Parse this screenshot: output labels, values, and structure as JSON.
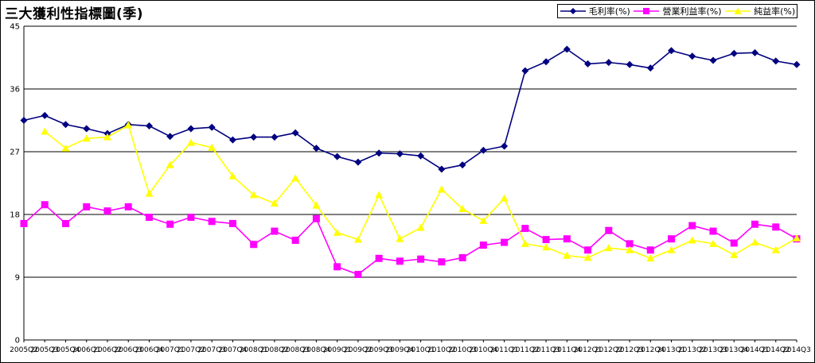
{
  "chart_data": {
    "type": "line",
    "title": "三大獲利性指標圖(季)",
    "categories": [
      "2005Q2",
      "2005Q3",
      "2005Q4",
      "2006Q1",
      "2006Q2",
      "2006Q3",
      "2006Q4",
      "2007Q1",
      "2007Q2",
      "2007Q3",
      "2007Q4",
      "2008Q1",
      "2008Q2",
      "2008Q3",
      "2008Q4",
      "2009Q1",
      "2009Q2",
      "2009Q3",
      "2009Q4",
      "2010Q1",
      "2010Q2",
      "2010Q3",
      "2010Q4",
      "2011Q1",
      "2011Q2",
      "2011Q3",
      "2011Q4",
      "2012Q1",
      "2012Q2",
      "2012Q3",
      "2012Q4",
      "2013Q1",
      "2013Q2",
      "2013Q3",
      "2013Q4",
      "2014Q1",
      "2014Q2",
      "2014Q3"
    ],
    "x_tick_labels": [
      "2005Q2",
      "2005Q3",
      "2005Q4",
      "2006Q1",
      "2006Q2",
      "2006Q3",
      "2006Q4",
      "2007Q1",
      "2007Q2",
      "2007Q3",
      "2007Q4",
      "2008Q1",
      "2008Q2",
      "2008Q3",
      "2008Q4",
      "2009Q1",
      "2009Q2",
      "2009Q3",
      "2009Q4",
      "2010Q1",
      "2010Q2",
      "2010Q3",
      "2010Q4",
      "2011Q1",
      "2011Q2",
      "2011Q3",
      "2011Q4",
      "2012Q1",
      "2012Q2",
      "2012Q3",
      "2012Q4",
      "2013Q1",
      "2013Q2",
      "2013Q3",
      "2013Q4",
      "2014Q1",
      "2014Q2",
      "2014Q3"
    ],
    "ylim": [
      0,
      45
    ],
    "y_ticks": [
      0,
      9,
      18,
      27,
      36,
      45
    ],
    "grid": true,
    "legend_position": "top-right",
    "series": [
      {
        "name": "毛利率(%)",
        "color": "#000080",
        "marker": "diamond",
        "values": [
          31.5,
          32.2,
          30.9,
          30.3,
          29.6,
          30.9,
          30.7,
          29.2,
          30.3,
          30.5,
          28.7,
          29.1,
          29.1,
          29.7,
          27.5,
          26.3,
          25.5,
          26.8,
          26.7,
          26.4,
          24.5,
          25.1,
          27.2,
          27.8,
          38.6,
          39.9,
          41.7,
          39.6,
          39.8,
          39.5,
          39.0,
          41.5,
          40.7,
          40.1,
          41.1,
          41.2,
          40.0,
          39.5
        ]
      },
      {
        "name": "營業利益率(%)",
        "color": "#ff00ff",
        "marker": "square",
        "values": [
          16.7,
          19.4,
          16.7,
          19.1,
          18.5,
          19.1,
          17.6,
          16.6,
          17.6,
          17.0,
          16.7,
          13.7,
          15.6,
          14.3,
          17.4,
          10.5,
          9.4,
          11.7,
          11.3,
          11.6,
          11.2,
          11.8,
          13.6,
          14.0,
          16.0,
          14.4,
          14.5,
          12.9,
          15.7,
          13.8,
          12.9,
          14.5,
          16.4,
          15.6,
          13.9,
          16.6,
          16.2,
          14.5
        ]
      },
      {
        "name": "純益率(%)",
        "color": "#ffff00",
        "marker": "triangle",
        "values": [
          null,
          29.9,
          27.5,
          28.9,
          29.1,
          30.8,
          21.0,
          25.1,
          28.3,
          27.6,
          23.5,
          20.8,
          19.6,
          23.2,
          19.3,
          15.4,
          14.4,
          20.8,
          14.5,
          16.1,
          21.6,
          18.8,
          17.1,
          20.3,
          13.8,
          13.3,
          12.1,
          11.8,
          13.2,
          12.9,
          11.7,
          12.9,
          14.3,
          13.8,
          12.2,
          14.0,
          12.9,
          14.6
        ]
      }
    ]
  }
}
